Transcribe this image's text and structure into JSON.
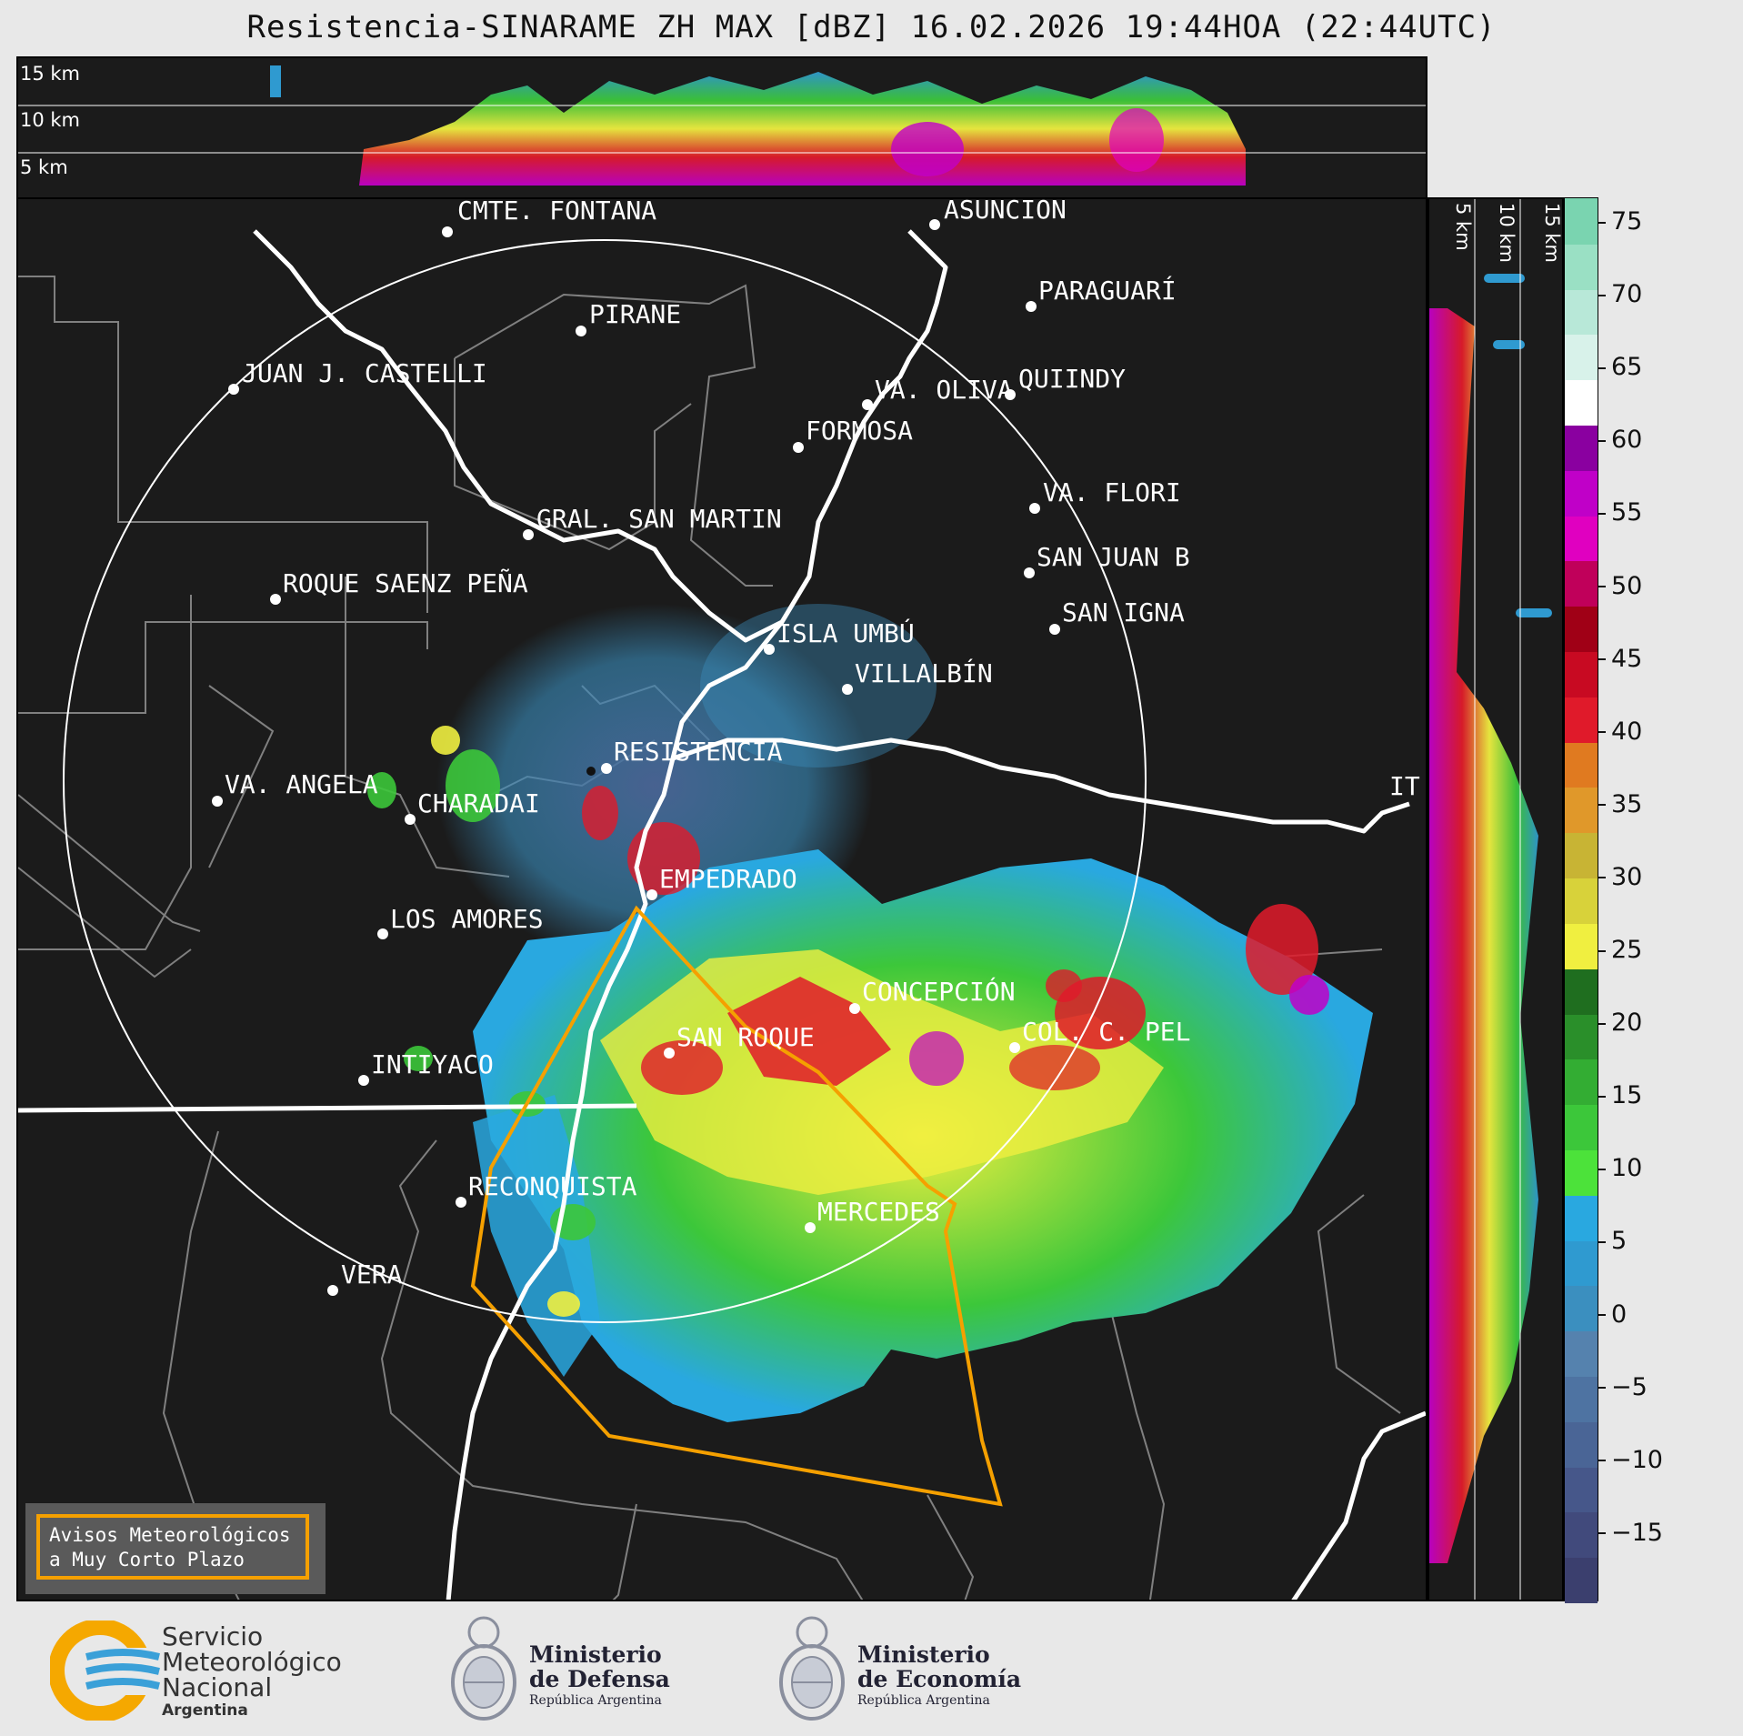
{
  "title": "Resistencia-SINARAME ZH MAX [dBZ] 16.02.2026 19:44HOA (22:44UTC)",
  "top_panel": {
    "height_labels": [
      "15 km",
      "10 km",
      "5 km"
    ]
  },
  "side_panel": {
    "height_labels": [
      "5 km",
      "10 km",
      "15 km"
    ]
  },
  "colorbar": {
    "ticks": [
      "75",
      "70",
      "65",
      "60",
      "55",
      "50",
      "45",
      "40",
      "35",
      "30",
      "25",
      "20",
      "15",
      "10",
      "5",
      "0",
      "−5",
      "−10",
      "−15"
    ],
    "colors": [
      "#3b3f6e",
      "#414a7c",
      "#46578a",
      "#4a6596",
      "#4e73a2",
      "#5582ae",
      "#3b8fbf",
      "#2f9ad0",
      "#29a8e0",
      "#4ce23a",
      "#3cc73a",
      "#33ad33",
      "#2a8f2a",
      "#1f6e1f",
      "#f0ef40",
      "#d8d23a",
      "#c8b434",
      "#e0982a",
      "#e07a20",
      "#e01a2a",
      "#c80a22",
      "#a00016",
      "#c0005a",
      "#e000c0",
      "#c000c8",
      "#8a00a0",
      "#ffffff",
      "#d8f2ea",
      "#b8e8d8",
      "#9ae0c4",
      "#7ad4b0"
    ]
  },
  "cities": [
    {
      "name": "CMTE. FONTANA"
    },
    {
      "name": "ASUNCIÓN"
    },
    {
      "name": "PARAGUARÍ"
    },
    {
      "name": "PIRANE"
    },
    {
      "name": "JUAN J. CASTELLI"
    },
    {
      "name": "VA. OLIVA"
    },
    {
      "name": "QUIINDY"
    },
    {
      "name": "FORMOSA"
    },
    {
      "name": "VA. FLORI"
    },
    {
      "name": "GRAL. SAN MARTIN"
    },
    {
      "name": "SAN JUAN B"
    },
    {
      "name": "ROQUE SAENZ PEÑA"
    },
    {
      "name": "SAN IGNA"
    },
    {
      "name": "ISLA UMBÚ"
    },
    {
      "name": "VILLALBÍN"
    },
    {
      "name": "RESISTENCIA"
    },
    {
      "name": "VA. ANGELA"
    },
    {
      "name": "CHARADAI"
    },
    {
      "name": "IT"
    },
    {
      "name": "EMPEDRADO"
    },
    {
      "name": "LOS AMORES"
    },
    {
      "name": "CONCEPCIÓN"
    },
    {
      "name": "SAN ROQUE"
    },
    {
      "name": "COL. C. PEL"
    },
    {
      "name": "INTIYACO"
    },
    {
      "name": "RECONQUISTA"
    },
    {
      "name": "MERCEDES"
    },
    {
      "name": "VERA"
    }
  ],
  "aviso": {
    "line1": "Avisos Meteorológicos",
    "line2": "a Muy Corto Plazo"
  },
  "footer": {
    "smn": {
      "line1": "Servicio",
      "line2": "Meteorológico",
      "line3": "Nacional",
      "line4": "Argentina"
    },
    "defensa": {
      "line1": "Ministerio",
      "line2": "de Defensa",
      "line3": "República Argentina"
    },
    "economia": {
      "line1": "Ministerio",
      "line2": "de Economía",
      "line3": "República Argentina"
    }
  }
}
